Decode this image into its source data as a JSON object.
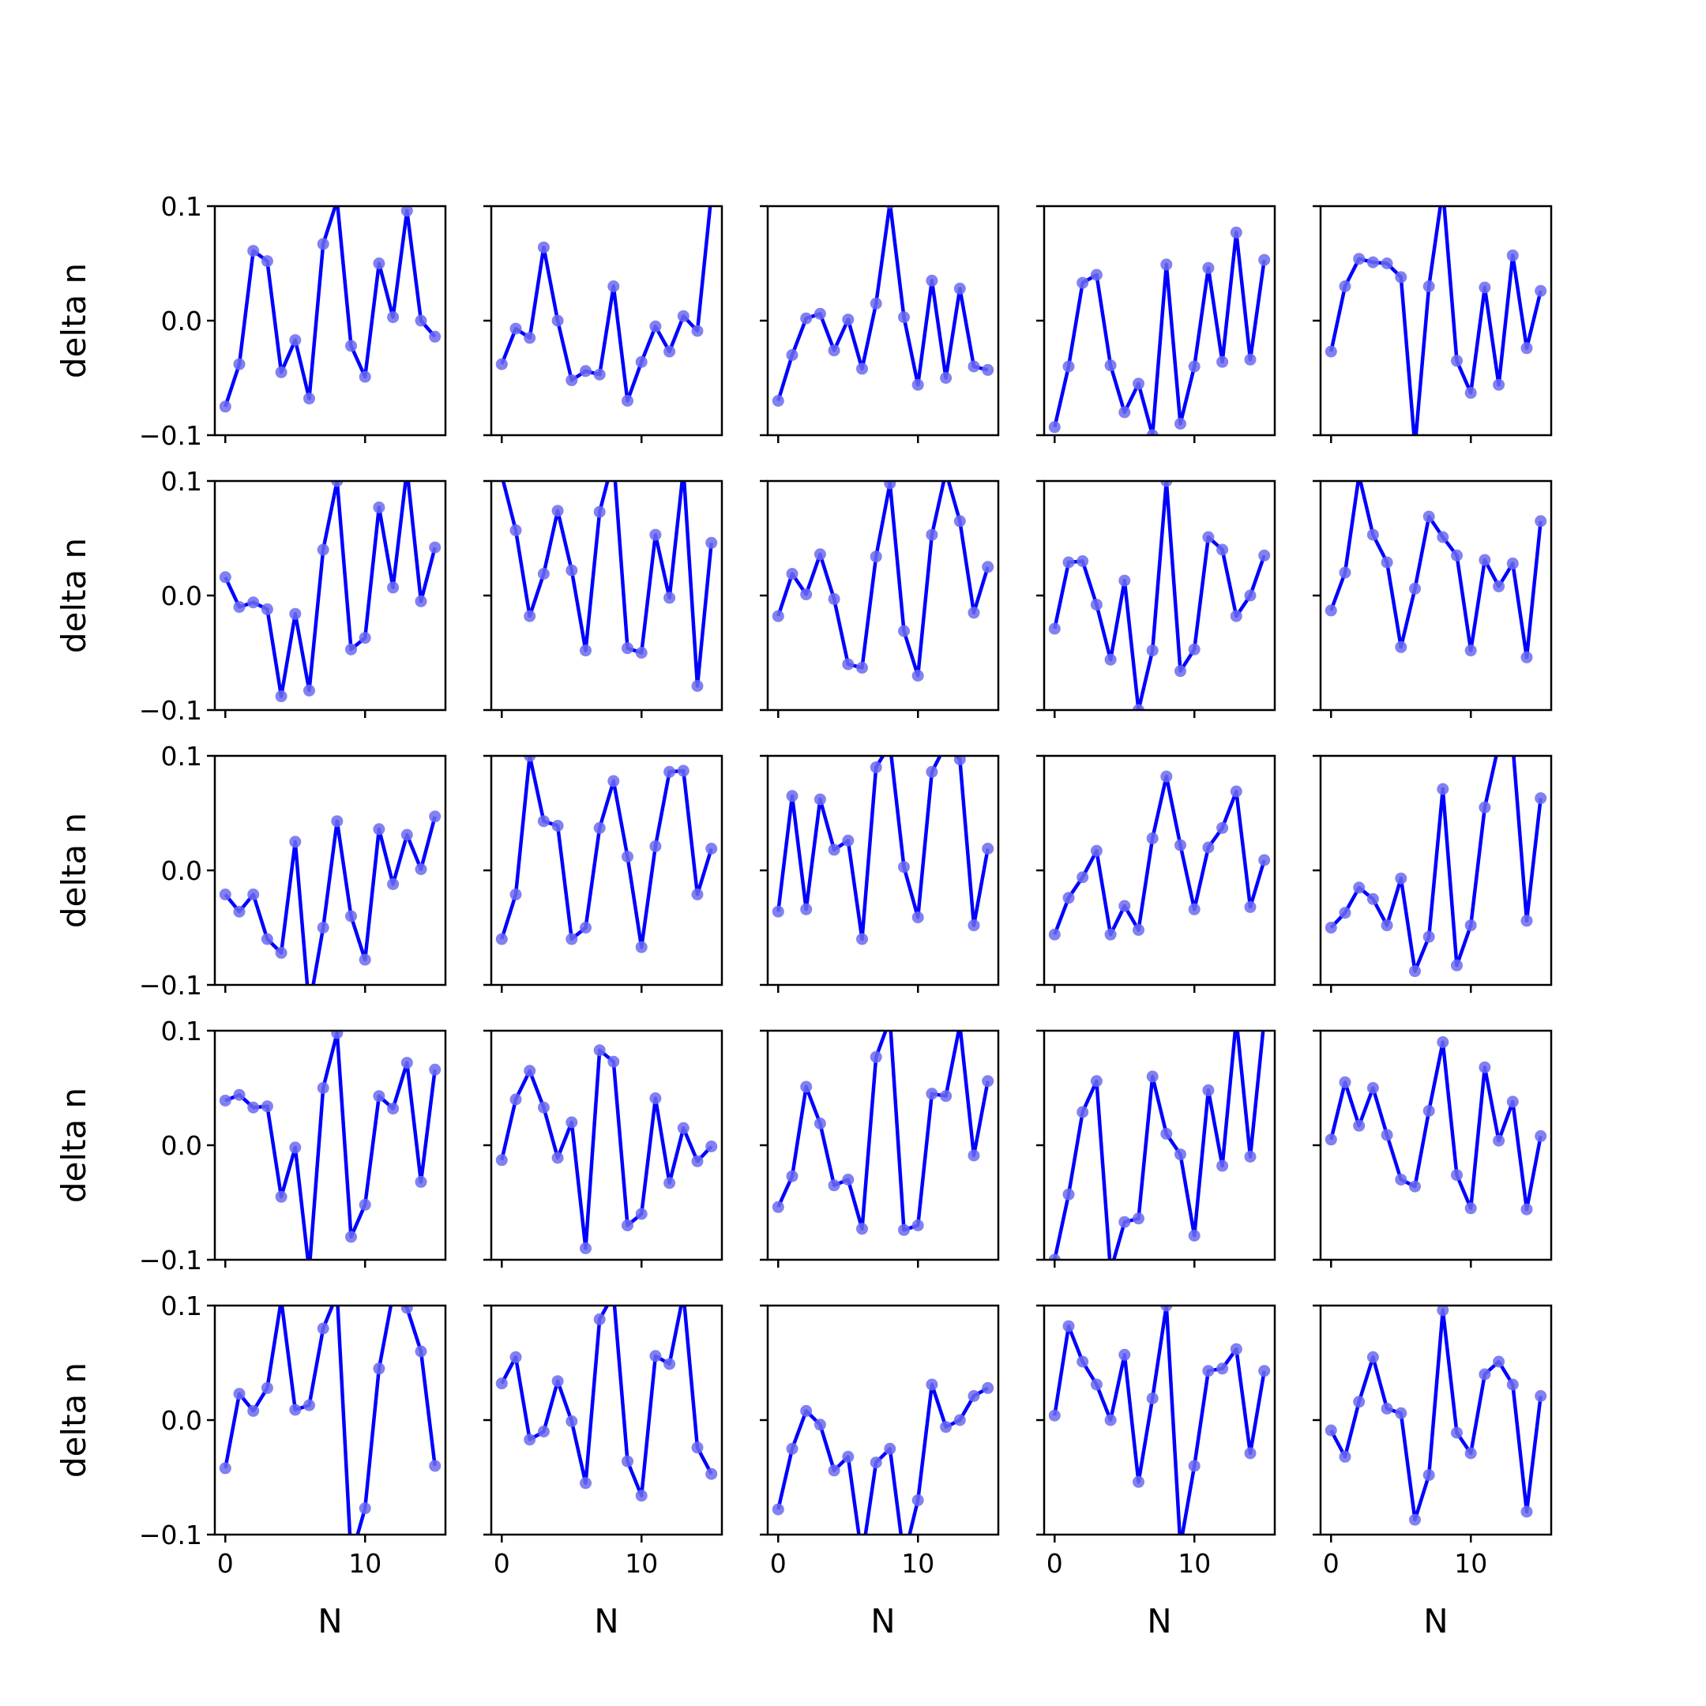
{
  "chart_data": {
    "type": "line",
    "layout": {
      "rows": 5,
      "cols": 5
    },
    "xlabel": "N",
    "ylabel": "delta n",
    "ylim": [
      -0.1,
      0.1
    ],
    "xlim": [
      -0.75,
      15.75
    ],
    "xticks": [
      0,
      10
    ],
    "xtick_labels": [
      "0",
      "10"
    ],
    "yticks": [
      -0.1,
      0.0,
      0.1
    ],
    "ytick_labels": [
      "−0.1",
      "0.0",
      "0.1"
    ],
    "x": [
      0,
      1,
      2,
      3,
      4,
      5,
      6,
      7,
      8,
      9,
      10,
      11,
      12,
      13,
      14,
      15
    ],
    "line_color": "#0000ff",
    "marker_color": "#6b6bf0",
    "panels": [
      [
        -0.075,
        -0.038,
        0.061,
        0.052,
        -0.045,
        -0.017,
        -0.068,
        0.067,
        0.105,
        -0.022,
        -0.049,
        0.05,
        0.003,
        0.096,
        0.0,
        -0.014
      ],
      [
        -0.038,
        -0.007,
        -0.015,
        0.064,
        0.0,
        -0.052,
        -0.044,
        -0.047,
        0.03,
        -0.07,
        -0.036,
        -0.005,
        -0.027,
        0.004,
        -0.009,
        0.11
      ],
      [
        -0.07,
        -0.03,
        0.002,
        0.006,
        -0.026,
        0.001,
        -0.042,
        0.015,
        0.103,
        0.003,
        -0.056,
        0.035,
        -0.05,
        0.028,
        -0.04,
        -0.043
      ],
      [
        -0.093,
        -0.04,
        0.033,
        0.04,
        -0.039,
        -0.08,
        -0.055,
        -0.1,
        0.049,
        -0.09,
        -0.04,
        0.046,
        -0.036,
        0.077,
        -0.034,
        0.053
      ],
      [
        -0.027,
        0.03,
        0.054,
        0.051,
        0.05,
        0.038,
        -0.11,
        0.03,
        0.115,
        -0.035,
        -0.063,
        0.029,
        -0.056,
        0.057,
        -0.024,
        0.026
      ],
      [
        0.016,
        -0.01,
        -0.006,
        -0.012,
        -0.088,
        -0.016,
        -0.083,
        0.04,
        0.1,
        -0.047,
        -0.037,
        0.077,
        0.007,
        0.11,
        -0.005,
        0.042
      ],
      [
        0.105,
        0.057,
        -0.018,
        0.019,
        0.074,
        0.022,
        -0.048,
        0.073,
        0.12,
        -0.046,
        -0.05,
        0.053,
        -0.002,
        0.11,
        -0.079,
        0.046
      ],
      [
        -0.018,
        0.019,
        0.001,
        0.036,
        -0.003,
        -0.06,
        -0.063,
        0.034,
        0.098,
        -0.031,
        -0.07,
        0.053,
        0.108,
        0.065,
        -0.015,
        0.025
      ],
      [
        -0.029,
        0.029,
        0.03,
        -0.008,
        -0.056,
        0.013,
        -0.1,
        -0.048,
        0.1,
        -0.066,
        -0.047,
        0.051,
        0.04,
        -0.018,
        0.0,
        0.035
      ],
      [
        -0.013,
        0.02,
        0.105,
        0.053,
        0.029,
        -0.045,
        0.006,
        0.069,
        0.051,
        0.035,
        -0.048,
        0.031,
        0.008,
        0.028,
        -0.054,
        0.065
      ],
      [
        -0.021,
        -0.036,
        -0.021,
        -0.06,
        -0.072,
        0.025,
        -0.12,
        -0.05,
        0.043,
        -0.04,
        -0.078,
        0.036,
        -0.012,
        0.031,
        0.001,
        0.047
      ],
      [
        -0.06,
        -0.021,
        0.1,
        0.043,
        0.039,
        -0.06,
        -0.05,
        0.037,
        0.078,
        0.012,
        -0.067,
        0.021,
        0.086,
        0.087,
        -0.021,
        0.019
      ],
      [
        -0.036,
        0.065,
        -0.034,
        0.062,
        0.018,
        0.026,
        -0.06,
        0.09,
        0.11,
        0.003,
        -0.041,
        0.086,
        0.11,
        0.097,
        -0.048,
        0.019
      ],
      [
        -0.056,
        -0.024,
        -0.006,
        0.017,
        -0.056,
        -0.031,
        -0.052,
        0.028,
        0.082,
        0.022,
        -0.034,
        0.02,
        0.037,
        0.069,
        -0.032,
        0.009
      ],
      [
        -0.05,
        -0.037,
        -0.015,
        -0.025,
        -0.048,
        -0.007,
        -0.088,
        -0.058,
        0.071,
        -0.083,
        -0.048,
        0.055,
        0.11,
        0.11,
        -0.044,
        0.063
      ],
      [
        0.039,
        0.044,
        0.033,
        0.034,
        -0.045,
        -0.002,
        -0.11,
        0.05,
        0.098,
        -0.08,
        -0.052,
        0.043,
        0.032,
        0.072,
        -0.032,
        0.066
      ],
      [
        -0.013,
        0.04,
        0.065,
        0.033,
        -0.011,
        0.02,
        -0.09,
        0.083,
        0.073,
        -0.07,
        -0.06,
        0.041,
        -0.033,
        0.015,
        -0.014,
        -0.001
      ],
      [
        -0.054,
        -0.027,
        0.051,
        0.019,
        -0.035,
        -0.03,
        -0.073,
        0.077,
        0.11,
        -0.074,
        -0.07,
        0.045,
        0.043,
        0.105,
        -0.009,
        0.056
      ],
      [
        -0.1,
        -0.043,
        0.029,
        0.056,
        -0.11,
        -0.067,
        -0.064,
        0.06,
        0.01,
        -0.008,
        -0.079,
        0.048,
        -0.018,
        0.11,
        -0.01,
        0.11
      ],
      [
        0.005,
        0.055,
        0.017,
        0.05,
        0.009,
        -0.03,
        -0.036,
        0.03,
        0.09,
        -0.026,
        -0.055,
        0.068,
        0.004,
        0.038,
        -0.056,
        0.008
      ],
      [
        -0.042,
        0.023,
        0.008,
        0.028,
        0.105,
        0.009,
        0.013,
        0.08,
        0.11,
        -0.12,
        -0.077,
        0.045,
        0.11,
        0.098,
        0.06,
        -0.04
      ],
      [
        0.032,
        0.055,
        -0.017,
        -0.01,
        0.034,
        -0.001,
        -0.055,
        0.088,
        0.11,
        -0.036,
        -0.066,
        0.056,
        0.049,
        0.11,
        -0.024,
        -0.047
      ],
      [
        -0.078,
        -0.025,
        0.008,
        -0.004,
        -0.044,
        -0.032,
        -0.12,
        -0.037,
        -0.025,
        -0.12,
        -0.07,
        0.031,
        -0.006,
        0.0,
        0.021,
        0.028
      ],
      [
        0.004,
        0.082,
        0.051,
        0.031,
        0.0,
        0.057,
        -0.054,
        0.019,
        0.1,
        -0.11,
        -0.04,
        0.043,
        0.045,
        0.062,
        -0.029,
        0.043
      ],
      [
        -0.009,
        -0.032,
        0.016,
        0.055,
        0.01,
        0.006,
        -0.087,
        -0.048,
        0.096,
        -0.011,
        -0.029,
        0.04,
        0.051,
        0.031,
        -0.08,
        0.021
      ]
    ]
  }
}
